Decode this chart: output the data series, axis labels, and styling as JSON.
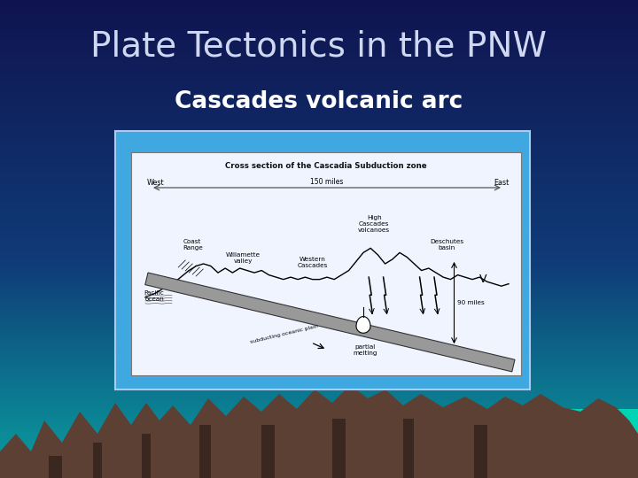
{
  "title": "Plate Tectonics in the PNW",
  "subtitle": "Cascades volcanic arc",
  "title_color": "#d0d8f0",
  "subtitle_color": "#FFFFFF",
  "diagram_title": "Cross section of the Cascadia Subduction zone",
  "panel_bg": "#3fa8e0",
  "panel_border": "#aaccee",
  "diagram_bg": "#f0f4ff",
  "mountain_color": "#5c4033",
  "mountain_shadow": "#3a2820",
  "water_color": "#00d4b4"
}
